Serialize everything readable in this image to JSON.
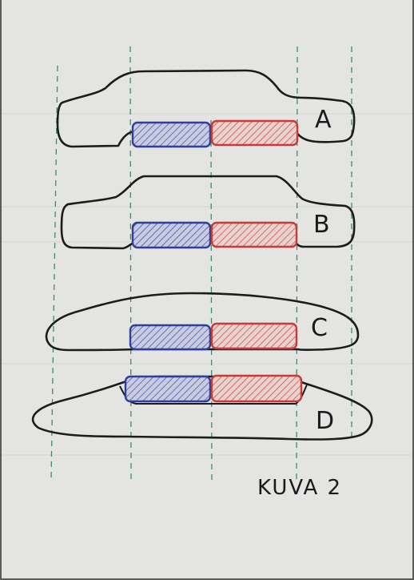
{
  "diagram": {
    "caption": "KUVA 2",
    "shapes": [
      {
        "id": "A",
        "label": "A"
      },
      {
        "id": "B",
        "label": "B"
      },
      {
        "id": "C",
        "label": "C"
      },
      {
        "id": "D",
        "label": "D"
      }
    ],
    "colors": {
      "paper": "#e4e5e2",
      "outline": "#1c1c1c",
      "guide": "#3f8a6e",
      "blue_block": "#2f3f9a",
      "red_block": "#c83a36"
    }
  }
}
